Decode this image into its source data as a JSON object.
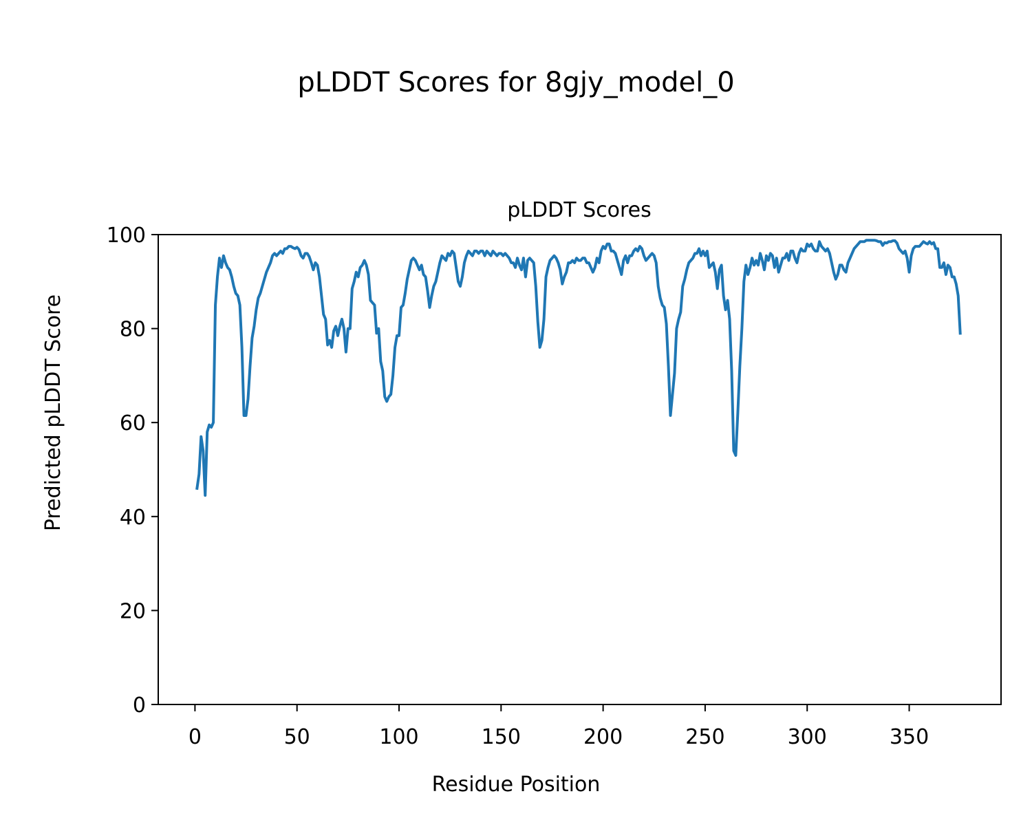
{
  "figure_title": "pLDDT Scores for 8gjy_model_0",
  "colors": {
    "line": "#1f77b4",
    "axes": "#000000",
    "background": "#ffffff"
  },
  "chart_data": {
    "type": "line",
    "title": "pLDDT Scores",
    "xlabel": "Residue Position",
    "ylabel": "Predicted pLDDT Score",
    "xlim": [
      -18,
      395
    ],
    "ylim": [
      0,
      100
    ],
    "x_ticks": [
      0,
      50,
      100,
      150,
      200,
      250,
      300,
      350
    ],
    "y_ticks": [
      0,
      20,
      40,
      60,
      80,
      100
    ],
    "grid": false,
    "legend": "none",
    "series": [
      {
        "x_start": 1,
        "values": [
          46,
          49,
          57,
          54,
          44.5,
          58,
          59.5,
          59,
          60,
          85,
          91,
          95,
          93,
          95.5,
          94,
          93,
          92.5,
          91,
          89,
          87.5,
          87,
          85,
          76,
          61.5,
          61.5,
          65,
          72,
          78,
          80.5,
          84,
          86.5,
          87.5,
          89,
          90.5,
          92,
          93,
          94,
          95.5,
          96,
          95.5,
          96,
          96.5,
          96,
          97,
          97,
          97.5,
          97.5,
          97.2,
          97,
          97.3,
          96.8,
          95.5,
          95,
          96,
          96,
          95.3,
          94,
          92.5,
          94,
          93.5,
          91,
          87,
          83,
          82,
          76.5,
          77.5,
          76,
          79.5,
          80.5,
          78.5,
          80.5,
          82,
          80,
          75,
          80,
          80,
          88.5,
          90,
          92,
          91,
          93,
          93.5,
          94.5,
          93.5,
          91.5,
          86,
          85.5,
          85,
          79,
          80,
          73,
          71,
          65.5,
          64.5,
          65.5,
          66,
          70,
          76,
          78.5,
          78.5,
          84.5,
          85,
          87.5,
          90.5,
          92.5,
          94.5,
          95,
          94.5,
          93.5,
          92.5,
          93.5,
          91.5,
          91,
          88,
          84.5,
          87,
          89,
          90,
          92,
          94,
          95.5,
          95,
          94.5,
          96,
          95.5,
          96.5,
          96,
          93,
          90,
          89,
          91,
          94,
          95.5,
          96.5,
          96,
          95.5,
          96.5,
          96.5,
          96,
          96.5,
          96.5,
          95.5,
          96.5,
          96,
          95.5,
          96.5,
          96,
          95.5,
          96,
          96,
          95.5,
          96,
          95.5,
          95,
          94,
          94,
          93,
          95,
          93.5,
          92.5,
          95,
          91,
          94.5,
          95,
          94.5,
          94,
          89,
          81.5,
          76,
          77.5,
          82,
          91,
          93,
          94.5,
          95,
          95.5,
          95,
          94,
          92.5,
          89.5,
          91,
          92,
          94,
          94,
          94.5,
          94,
          95,
          94.5,
          94.5,
          95,
          95,
          94,
          94,
          93,
          92,
          93,
          95,
          94,
          96.5,
          97.5,
          97,
          98,
          98,
          96.5,
          96.5,
          96,
          94.5,
          93,
          91.5,
          94.5,
          95.5,
          94,
          95.5,
          95.5,
          96.5,
          97,
          96.5,
          97.5,
          97,
          95.5,
          94.5,
          95,
          95.5,
          96,
          95.5,
          94,
          89,
          86.5,
          85,
          84.5,
          81,
          72,
          61.5,
          66,
          70.5,
          80,
          82,
          83.5,
          89,
          90.5,
          92.5,
          94,
          94.5,
          95,
          96,
          96,
          97,
          95.5,
          96.5,
          95.5,
          96.5,
          93,
          93.5,
          94,
          92,
          88.5,
          92.5,
          93.5,
          87,
          84,
          86,
          82,
          71,
          54,
          53,
          62,
          72,
          80,
          90,
          93.5,
          91.5,
          93,
          95,
          93.5,
          94.5,
          93.5,
          96,
          94.5,
          92.5,
          95.5,
          94.5,
          96,
          95.5,
          93,
          95,
          92,
          93.5,
          95,
          95,
          96,
          94.5,
          96.5,
          96.5,
          95,
          94,
          96,
          97,
          96.5,
          96.5,
          98,
          97.5,
          98,
          97,
          96.5,
          96.5,
          98.5,
          97.5,
          97,
          96.5,
          97,
          96,
          94,
          92,
          90.5,
          91.5,
          93.5,
          93.5,
          92.5,
          92,
          94,
          95,
          96,
          97,
          97.5,
          98,
          98.5,
          98.5,
          98.5,
          98.8,
          98.8,
          98.8,
          98.8,
          98.8,
          98.7,
          98.5,
          98.5,
          97.7,
          98.3,
          98.2,
          98.5,
          98.5,
          98.7,
          98.7,
          98.2,
          97,
          96.5,
          96,
          96.5,
          95,
          92,
          95.5,
          97,
          97.5,
          97.5,
          97.5,
          98,
          98.5,
          98.2,
          98,
          98.5,
          98,
          98.3,
          97,
          97,
          93,
          93,
          94,
          91.5,
          93.5,
          93,
          91,
          91,
          89.5,
          87,
          79
        ]
      }
    ]
  }
}
